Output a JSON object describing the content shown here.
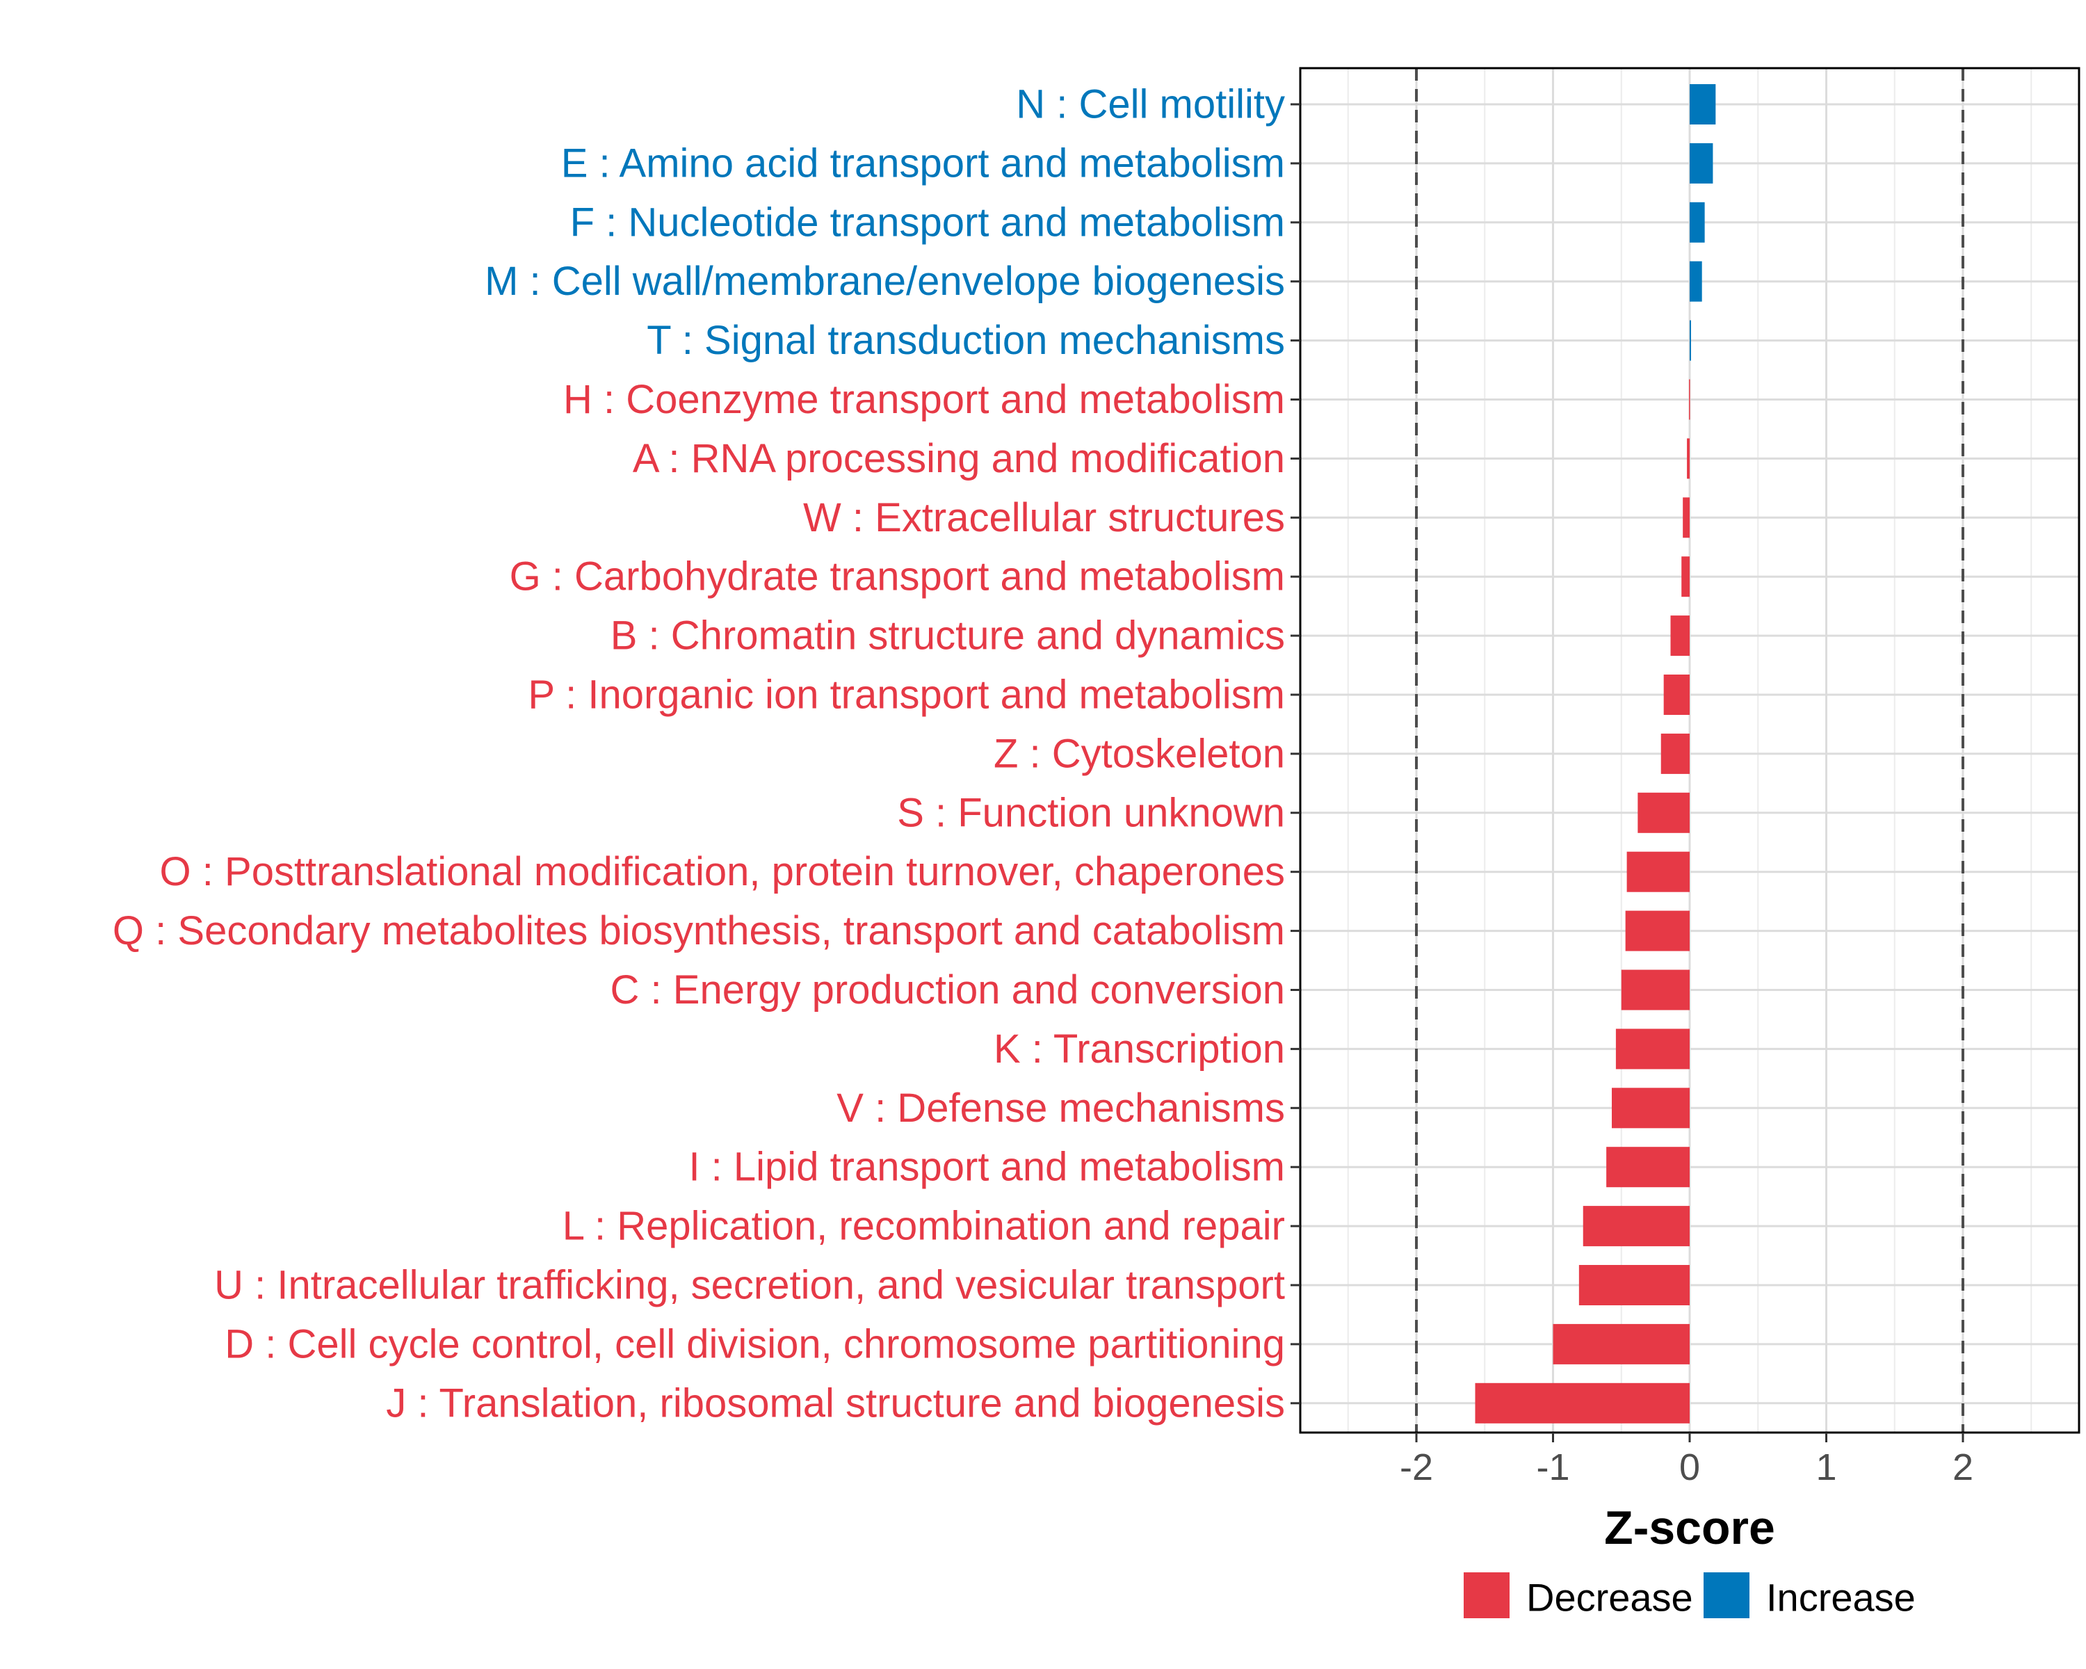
{
  "chart_data": {
    "type": "bar",
    "orientation": "horizontal",
    "title": "",
    "xlabel": "Z-score",
    "ylabel": "",
    "xlim": [
      -2.85,
      2.85
    ],
    "xticks": [
      -2,
      -1,
      0,
      1,
      2
    ],
    "xtick_labels": [
      "-2",
      "-1",
      "0",
      "1",
      "2"
    ],
    "reference_lines": [
      -2,
      2
    ],
    "grid": true,
    "colors": {
      "Decrease": "#E63946",
      "Increase": "#0077BB"
    },
    "categories": [
      {
        "label": "N : Cell motility",
        "value": 0.19,
        "direction": "Increase"
      },
      {
        "label": "E : Amino acid transport and metabolism",
        "value": 0.17,
        "direction": "Increase"
      },
      {
        "label": "F : Nucleotide transport and metabolism",
        "value": 0.11,
        "direction": "Increase"
      },
      {
        "label": "M : Cell wall/membrane/envelope biogenesis",
        "value": 0.09,
        "direction": "Increase"
      },
      {
        "label": "T : Signal transduction mechanisms",
        "value": 0.01,
        "direction": "Increase"
      },
      {
        "label": "H : Coenzyme transport and metabolism",
        "value": -0.005,
        "direction": "Decrease"
      },
      {
        "label": "A : RNA processing and modification",
        "value": -0.02,
        "direction": "Decrease"
      },
      {
        "label": "W : Extracellular structures",
        "value": -0.05,
        "direction": "Decrease"
      },
      {
        "label": "G : Carbohydrate transport and metabolism",
        "value": -0.06,
        "direction": "Decrease"
      },
      {
        "label": "B : Chromatin structure and dynamics",
        "value": -0.14,
        "direction": "Decrease"
      },
      {
        "label": "P : Inorganic ion transport and metabolism",
        "value": -0.19,
        "direction": "Decrease"
      },
      {
        "label": "Z : Cytoskeleton",
        "value": -0.21,
        "direction": "Decrease"
      },
      {
        "label": "S : Function unknown",
        "value": -0.38,
        "direction": "Decrease"
      },
      {
        "label": "O : Posttranslational modification, protein turnover, chaperones",
        "value": -0.46,
        "direction": "Decrease"
      },
      {
        "label": "Q : Secondary metabolites biosynthesis, transport and catabolism",
        "value": -0.47,
        "direction": "Decrease"
      },
      {
        "label": "C : Energy production and conversion",
        "value": -0.5,
        "direction": "Decrease"
      },
      {
        "label": "K : Transcription",
        "value": -0.54,
        "direction": "Decrease"
      },
      {
        "label": "V : Defense mechanisms",
        "value": -0.57,
        "direction": "Decrease"
      },
      {
        "label": "I : Lipid transport and metabolism",
        "value": -0.61,
        "direction": "Decrease"
      },
      {
        "label": "L : Replication, recombination and repair",
        "value": -0.78,
        "direction": "Decrease"
      },
      {
        "label": "U : Intracellular trafficking, secretion, and vesicular transport",
        "value": -0.81,
        "direction": "Decrease"
      },
      {
        "label": "D : Cell cycle control, cell division, chromosome partitioning",
        "value": -1.0,
        "direction": "Decrease"
      },
      {
        "label": "J : Translation, ribosomal structure and biogenesis",
        "value": -1.57,
        "direction": "Decrease"
      }
    ],
    "legend": {
      "placement": "bottom",
      "entries": [
        {
          "label": "Decrease",
          "color": "#E63946"
        },
        {
          "label": "Increase",
          "color": "#0077BB"
        }
      ]
    }
  }
}
